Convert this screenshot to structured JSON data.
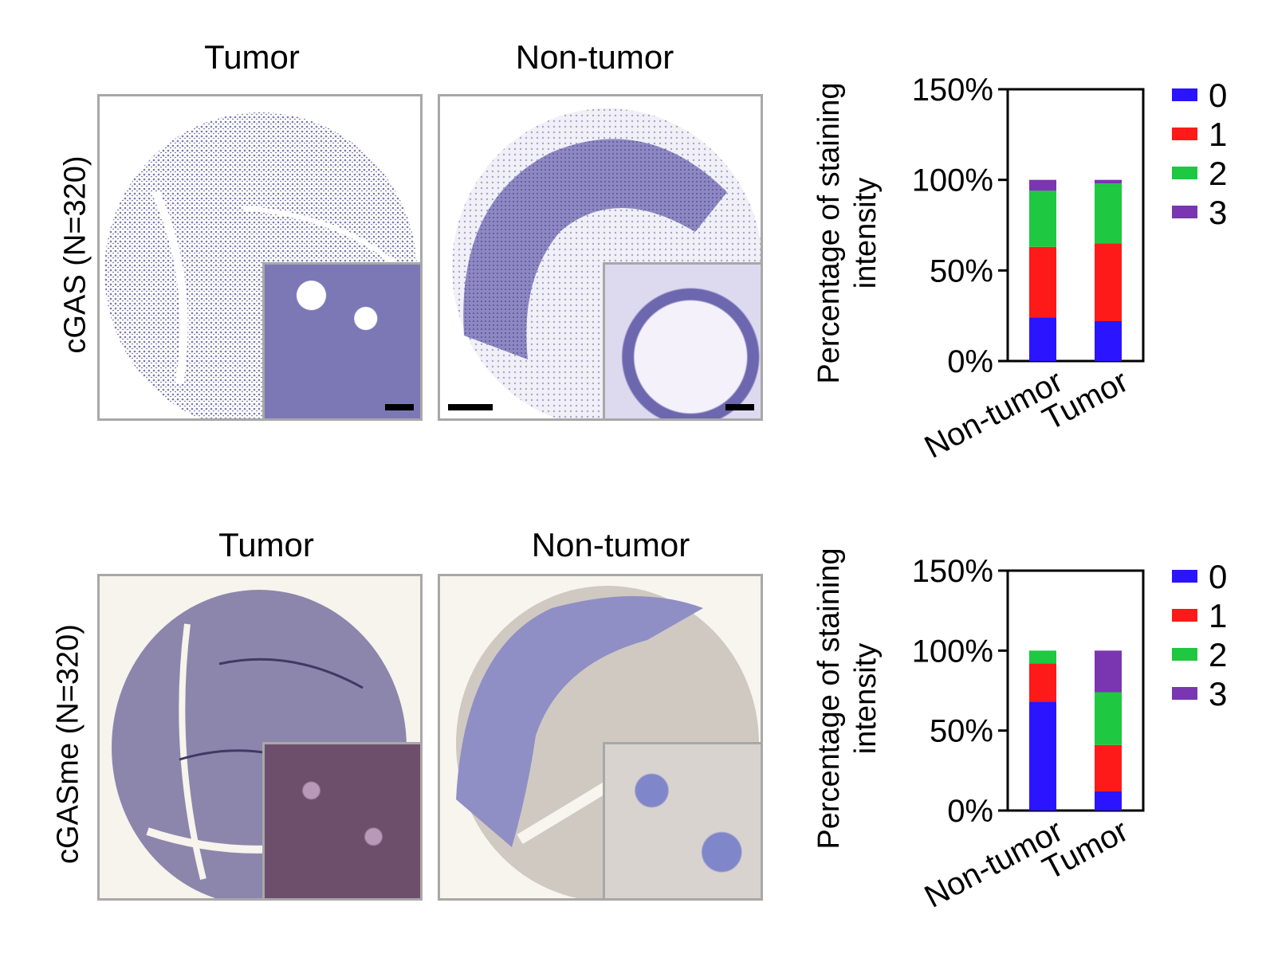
{
  "rows": [
    {
      "label": "cGAS (N=320)",
      "panels": [
        {
          "title": "Tumor",
          "scalebar": true
        },
        {
          "title": "Non-tumor",
          "scalebar": true
        }
      ]
    },
    {
      "label": "cGASme (N=320)",
      "panels": [
        {
          "title": "Tumor",
          "scalebar": false
        },
        {
          "title": "Non-tumor",
          "scalebar": false
        }
      ]
    }
  ],
  "colors": {
    "0": "#2b14ff",
    "1": "#ff1a1a",
    "2": "#1ec840",
    "3": "#7a35b0"
  },
  "chart_data": [
    {
      "type": "bar",
      "stacked": true,
      "categories": [
        "Non-tumor",
        "Tumor"
      ],
      "series": [
        {
          "name": "0",
          "values": [
            24,
            22
          ]
        },
        {
          "name": "1",
          "values": [
            39,
            43
          ]
        },
        {
          "name": "2",
          "values": [
            31,
            33
          ]
        },
        {
          "name": "3",
          "values": [
            6,
            2
          ]
        }
      ],
      "ylabel": "Percentage of staining intensity",
      "yticks": [
        "0%",
        "50%",
        "100%",
        "150%"
      ],
      "ylim": [
        0,
        150
      ],
      "legend": "right"
    },
    {
      "type": "bar",
      "stacked": true,
      "categories": [
        "Non-tumor",
        "Tumor"
      ],
      "series": [
        {
          "name": "0",
          "values": [
            68,
            12
          ]
        },
        {
          "name": "1",
          "values": [
            24,
            29
          ]
        },
        {
          "name": "2",
          "values": [
            8,
            33
          ]
        },
        {
          "name": "3",
          "values": [
            0,
            26
          ]
        }
      ],
      "ylabel": "Percentage of staining intensity",
      "yticks": [
        "0%",
        "50%",
        "100%",
        "150%"
      ],
      "ylim": [
        0,
        150
      ],
      "legend": "right"
    }
  ]
}
